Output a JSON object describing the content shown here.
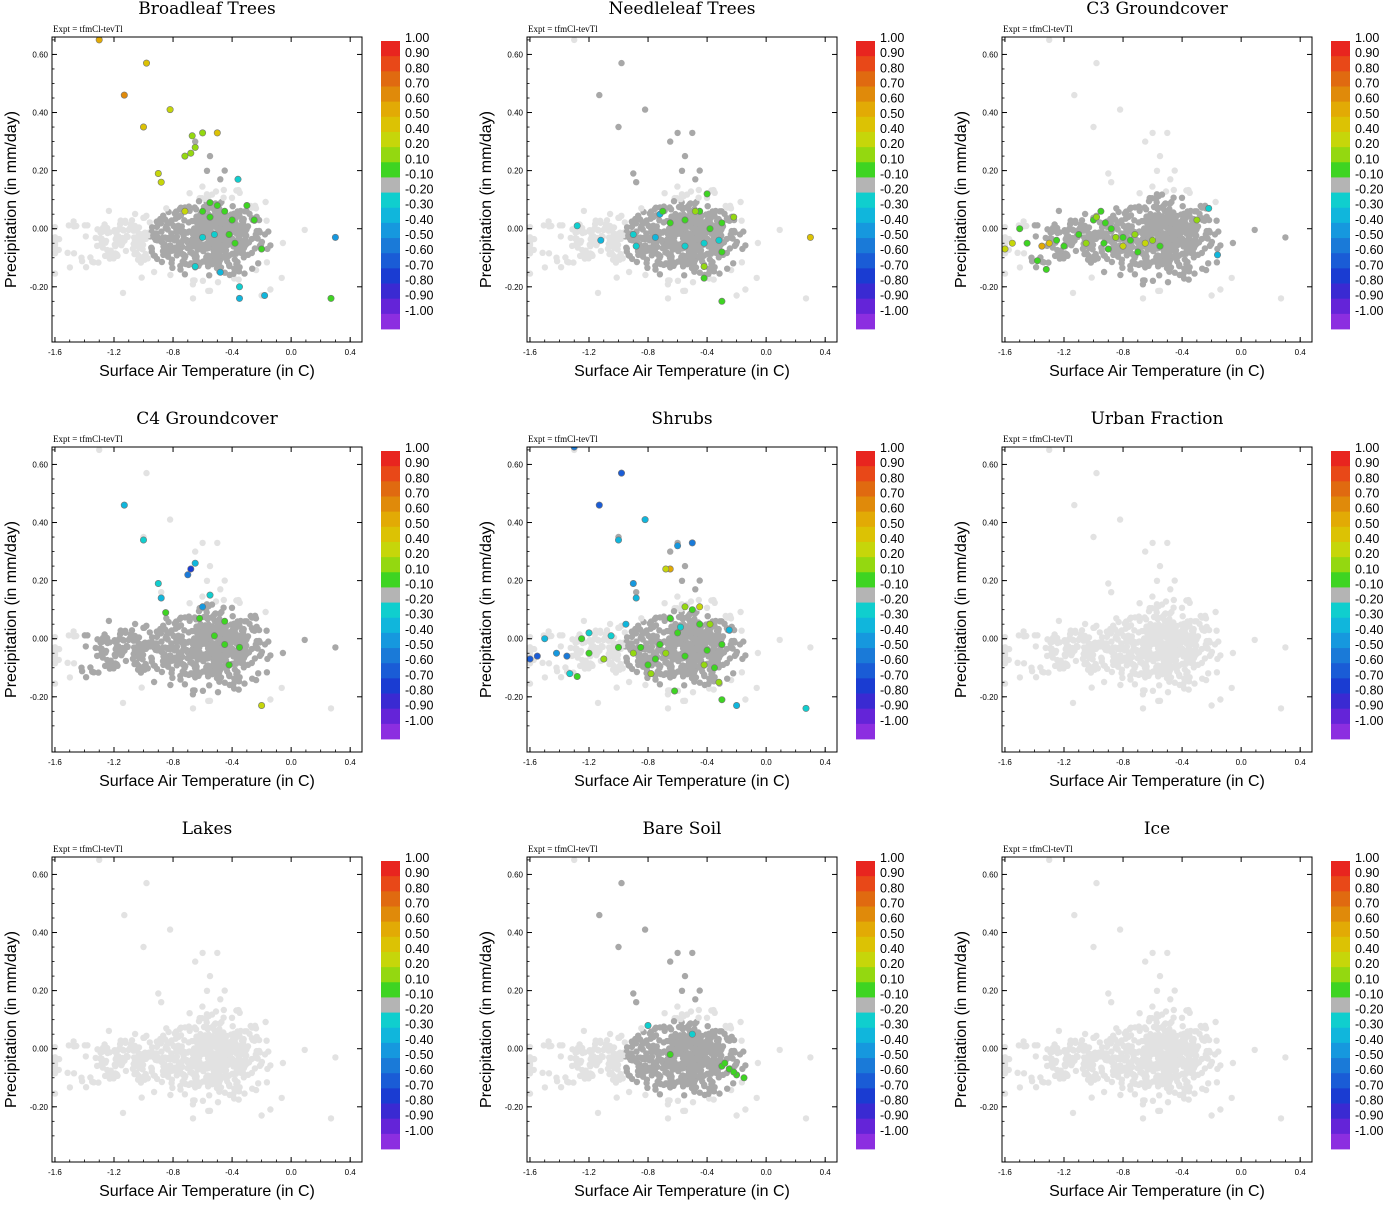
{
  "colorbar": {
    "labels": [
      "1.00",
      "0.90",
      "0.80",
      "0.70",
      "0.60",
      "0.50",
      "0.40",
      "0.20",
      "0.10",
      "-0.10",
      "-0.20",
      "-0.30",
      "-0.40",
      "-0.50",
      "-0.60",
      "-0.70",
      "-0.80",
      "-0.90",
      "-1.00"
    ],
    "colors": [
      "#e8251f",
      "#e84818",
      "#e06a10",
      "#e08a0a",
      "#e2aa05",
      "#dcc204",
      "#c6d60a",
      "#94d810",
      "#3ed422",
      "#b4b4b4",
      "#10cece",
      "#10b6dc",
      "#1698de",
      "#1a7ad8",
      "#1a5cd6",
      "#1a3cd2",
      "#3a2ad2",
      "#6424d8",
      "#8c2ee0"
    ]
  },
  "colors": {
    "light_gray": "#e2e2e2",
    "mid_gray": "#a8a8a8"
  },
  "chart_data": [
    {
      "type": "scatter",
      "title": "Broadleaf Trees",
      "annotation": "Expt = tfmCl-tevTl",
      "xlabel": "Surface Air Temperature (in C)",
      "ylabel": "Precipitation (in mm/day)",
      "xlim": [
        -1.62,
        0.48
      ],
      "ylim": [
        -0.39,
        0.66
      ],
      "xticks": [
        "-1.6",
        "-1.2",
        "-0.8",
        "-0.4",
        "0.0",
        "0.4"
      ],
      "yticks": [
        "0.60",
        "0.40",
        "0.20",
        "0.00",
        "-0.20"
      ],
      "colorbar_range": [
        -1.0,
        1.0
      ],
      "grid": false,
      "legend": "colorbar right",
      "colored_points": [
        [
          -1.3,
          0.65,
          0.6
        ],
        [
          -0.98,
          0.57,
          0.5
        ],
        [
          -1.13,
          0.46,
          0.7
        ],
        [
          -0.82,
          0.41,
          0.4
        ],
        [
          -1.0,
          0.35,
          0.5
        ],
        [
          -0.6,
          0.33,
          0.3
        ],
        [
          -0.67,
          0.32,
          0.2
        ],
        [
          -0.5,
          0.33,
          0.5
        ],
        [
          -0.65,
          0.28,
          0.2
        ],
        [
          -0.68,
          0.26,
          0.3
        ],
        [
          -0.72,
          0.25,
          0.3
        ],
        [
          -0.9,
          0.19,
          0.4
        ],
        [
          -0.88,
          0.16,
          0.4
        ],
        [
          -0.72,
          0.06,
          0.4
        ],
        [
          -0.36,
          0.17,
          -0.2
        ],
        [
          -0.55,
          0.09,
          0.1
        ],
        [
          -0.6,
          0.06,
          0.1
        ],
        [
          -0.5,
          0.08,
          0.1
        ],
        [
          -0.45,
          0.06,
          0.1
        ],
        [
          -0.3,
          0.08,
          0.1
        ],
        [
          -0.4,
          0.03,
          0.1
        ],
        [
          -0.55,
          0.04,
          0.1
        ],
        [
          -0.38,
          -0.05,
          0.1
        ],
        [
          -0.42,
          -0.02,
          0.1
        ],
        [
          -0.2,
          -0.07,
          0.1
        ],
        [
          -0.25,
          0.03,
          0.1
        ],
        [
          -0.6,
          -0.03,
          -0.2
        ],
        [
          -0.52,
          -0.02,
          -0.2
        ],
        [
          -0.65,
          -0.13,
          -0.2
        ],
        [
          -0.48,
          -0.15,
          -0.3
        ],
        [
          -0.35,
          -0.24,
          -0.3
        ],
        [
          -0.35,
          -0.2,
          -0.2
        ],
        [
          -0.18,
          -0.23,
          -0.3
        ],
        [
          0.3,
          -0.03,
          -0.4
        ],
        [
          0.27,
          -0.24,
          0.1
        ]
      ]
    },
    {
      "type": "scatter",
      "title": "Needleleaf Trees",
      "annotation": "Expt = tfmCl-tevTl",
      "xlabel": "Surface Air Temperature (in C)",
      "ylabel": "Precipitation (in mm/day)",
      "xlim": [
        -1.62,
        0.48
      ],
      "ylim": [
        -0.39,
        0.66
      ],
      "xticks": [
        "-1.6",
        "-1.2",
        "-0.8",
        "-0.4",
        "0.0",
        "0.4"
      ],
      "yticks": [
        "0.60",
        "0.40",
        "0.20",
        "0.00",
        "-0.20"
      ],
      "colorbar_range": [
        -1.0,
        1.0
      ],
      "grid": false,
      "legend": "colorbar right",
      "colored_points": [
        [
          -1.28,
          0.01,
          -0.2
        ],
        [
          -1.12,
          -0.04,
          -0.3
        ],
        [
          -0.9,
          -0.02,
          -0.2
        ],
        [
          -0.72,
          0.05,
          -0.3
        ],
        [
          -0.65,
          0.02,
          0.1
        ],
        [
          -0.55,
          0.03,
          0.1
        ],
        [
          -0.45,
          0.06,
          0.1
        ],
        [
          -0.4,
          0.12,
          0.1
        ],
        [
          -0.38,
          0.0,
          0.1
        ],
        [
          -0.3,
          0.02,
          0.1
        ],
        [
          -0.22,
          0.04,
          0.3
        ],
        [
          -0.3,
          -0.08,
          0.1
        ],
        [
          -0.42,
          -0.13,
          0.3
        ],
        [
          -0.42,
          -0.17,
          0.1
        ],
        [
          -0.3,
          -0.25,
          0.1
        ],
        [
          -0.48,
          0.06,
          0.2
        ],
        [
          -0.7,
          0.06,
          0.1
        ],
        [
          0.3,
          -0.03,
          0.5
        ],
        [
          -0.32,
          -0.04,
          -0.2
        ],
        [
          -0.42,
          -0.05,
          -0.2
        ],
        [
          -0.55,
          -0.06,
          -0.2
        ],
        [
          -0.75,
          -0.03,
          -0.3
        ],
        [
          -0.88,
          -0.06,
          -0.2
        ]
      ]
    },
    {
      "type": "scatter",
      "title": "C3 Groundcover",
      "annotation": "Expt = tfmCl-tevTl",
      "xlabel": "Surface Air Temperature (in C)",
      "ylabel": "Precipitation (in mm/day)",
      "xlim": [
        -1.62,
        0.48
      ],
      "ylim": [
        -0.39,
        0.66
      ],
      "xticks": [
        "-1.6",
        "-1.2",
        "-0.8",
        "-0.4",
        "0.0",
        "0.4"
      ],
      "yticks": [
        "0.60",
        "0.40",
        "0.20",
        "0.00",
        "-0.20"
      ],
      "colorbar_range": [
        -1.0,
        1.0
      ],
      "grid": false,
      "legend": "colorbar right",
      "colored_points": [
        [
          -1.6,
          -0.07,
          0.4
        ],
        [
          -1.55,
          -0.05,
          0.4
        ],
        [
          -1.5,
          0.0,
          0.1
        ],
        [
          -1.45,
          -0.05,
          0.1
        ],
        [
          -1.38,
          -0.11,
          0.1
        ],
        [
          -1.35,
          -0.06,
          0.6
        ],
        [
          -1.3,
          -0.05,
          0.5
        ],
        [
          -1.32,
          -0.14,
          0.1
        ],
        [
          -1.25,
          -0.04,
          0.1
        ],
        [
          -1.2,
          -0.06,
          0.1
        ],
        [
          -1.1,
          -0.02,
          0.1
        ],
        [
          -1.05,
          -0.05,
          0.3
        ],
        [
          -1.0,
          0.03,
          0.1
        ],
        [
          -0.95,
          0.06,
          0.1
        ],
        [
          -0.93,
          -0.05,
          0.1
        ],
        [
          -0.9,
          -0.07,
          0.1
        ],
        [
          -0.88,
          0.0,
          0.1
        ],
        [
          -0.85,
          -0.03,
          0.2
        ],
        [
          -0.8,
          -0.06,
          0.4
        ],
        [
          -0.75,
          -0.04,
          0.1
        ],
        [
          -0.7,
          -0.08,
          0.1
        ],
        [
          -0.65,
          -0.05,
          0.4
        ],
        [
          -0.6,
          -0.04,
          0.3
        ],
        [
          -0.55,
          -0.06,
          0.1
        ],
        [
          -0.72,
          -0.02,
          0.3
        ],
        [
          -0.3,
          0.03,
          0.3
        ],
        [
          -0.22,
          0.07,
          -0.2
        ],
        [
          -0.98,
          0.04,
          0.2
        ],
        [
          -0.92,
          0.02,
          0.1
        ],
        [
          -0.8,
          -0.03,
          0.1
        ],
        [
          -0.16,
          -0.09,
          -0.3
        ]
      ]
    },
    {
      "type": "scatter",
      "title": "C4 Groundcover",
      "annotation": "Expt = tfmCl-tevTl",
      "xlabel": "Surface Air Temperature (in C)",
      "ylabel": "Precipitation (in mm/day)",
      "xlim": [
        -1.62,
        0.48
      ],
      "ylim": [
        -0.39,
        0.66
      ],
      "xticks": [
        "-1.6",
        "-1.2",
        "-0.8",
        "-0.4",
        "0.0",
        "0.4"
      ],
      "yticks": [
        "0.60",
        "0.40",
        "0.20",
        "0.00",
        "-0.20"
      ],
      "colorbar_range": [
        -1.0,
        1.0
      ],
      "grid": false,
      "legend": "colorbar right",
      "colored_points": [
        [
          -1.13,
          0.46,
          -0.3
        ],
        [
          -1.0,
          0.34,
          -0.2
        ],
        [
          -0.9,
          0.19,
          -0.2
        ],
        [
          -0.88,
          0.14,
          -0.3
        ],
        [
          -0.68,
          0.24,
          -0.7
        ],
        [
          -0.65,
          0.26,
          -0.3
        ],
        [
          -0.7,
          0.22,
          -0.5
        ],
        [
          -0.85,
          0.09,
          0.1
        ],
        [
          -0.6,
          0.11,
          -0.4
        ],
        [
          -0.55,
          0.15,
          -0.2
        ],
        [
          -0.45,
          0.06,
          0.1
        ],
        [
          -0.52,
          0.01,
          0.1
        ],
        [
          -0.45,
          -0.02,
          0.1
        ],
        [
          -0.35,
          -0.03,
          0.1
        ],
        [
          -0.62,
          0.07,
          0.1
        ],
        [
          -0.42,
          -0.09,
          0.1
        ],
        [
          -0.2,
          -0.23,
          0.4
        ]
      ]
    },
    {
      "type": "scatter",
      "title": "Shrubs",
      "annotation": "Expt = tfmCl-tevTl",
      "xlabel": "Surface Air Temperature (in C)",
      "ylabel": "Precipitation (in mm/day)",
      "xlim": [
        -1.62,
        0.48
      ],
      "ylim": [
        -0.39,
        0.66
      ],
      "xticks": [
        "-1.6",
        "-1.2",
        "-0.8",
        "-0.4",
        "0.0",
        "0.4"
      ],
      "yticks": [
        "0.60",
        "0.40",
        "0.20",
        "0.00",
        "-0.20"
      ],
      "colorbar_range": [
        -1.0,
        1.0
      ],
      "grid": false,
      "legend": "colorbar right",
      "colored_points": [
        [
          -1.3,
          0.66,
          -0.5
        ],
        [
          -0.98,
          0.57,
          -0.6
        ],
        [
          -1.13,
          0.46,
          -0.6
        ],
        [
          -0.82,
          0.41,
          -0.3
        ],
        [
          -1.0,
          0.34,
          -0.3
        ],
        [
          -0.6,
          0.32,
          -0.4
        ],
        [
          -0.5,
          0.33,
          -0.5
        ],
        [
          -0.65,
          0.24,
          0.6
        ],
        [
          -0.68,
          0.24,
          0.4
        ],
        [
          -0.9,
          0.19,
          -0.4
        ],
        [
          -0.88,
          0.14,
          -0.3
        ],
        [
          -1.6,
          -0.07,
          -0.6
        ],
        [
          -1.55,
          -0.06,
          -0.6
        ],
        [
          -1.5,
          0.0,
          -0.3
        ],
        [
          -1.42,
          -0.05,
          -0.4
        ],
        [
          -1.35,
          -0.06,
          -0.5
        ],
        [
          -1.33,
          -0.12,
          -0.2
        ],
        [
          -1.28,
          -0.13,
          0.1
        ],
        [
          -1.25,
          0.0,
          0.1
        ],
        [
          -1.2,
          -0.05,
          0.1
        ],
        [
          -1.1,
          -0.07,
          0.2
        ],
        [
          -1.0,
          -0.03,
          0.1
        ],
        [
          -0.95,
          0.05,
          -0.3
        ],
        [
          -0.9,
          -0.05,
          0.3
        ],
        [
          -0.85,
          -0.03,
          0.1
        ],
        [
          -0.8,
          -0.09,
          0.1
        ],
        [
          -0.75,
          -0.07,
          0.1
        ],
        [
          -0.72,
          -0.02,
          0.1
        ],
        [
          -0.68,
          -0.05,
          0.3
        ],
        [
          -0.65,
          0.07,
          0.1
        ],
        [
          -0.6,
          0.02,
          0.1
        ],
        [
          -0.55,
          -0.06,
          0.1
        ],
        [
          -0.5,
          0.1,
          0.1
        ],
        [
          -0.45,
          0.05,
          0.1
        ],
        [
          -0.42,
          -0.09,
          0.3
        ],
        [
          -0.4,
          -0.04,
          0.1
        ],
        [
          -0.38,
          0.05,
          0.3
        ],
        [
          -0.35,
          -0.1,
          0.1
        ],
        [
          -0.32,
          -0.15,
          0.2
        ],
        [
          -0.3,
          -0.21,
          0.1
        ],
        [
          -0.3,
          -0.02,
          0.1
        ],
        [
          -0.25,
          0.03,
          -0.3
        ],
        [
          -0.2,
          -0.23,
          -0.3
        ],
        [
          -0.45,
          0.11,
          0.4
        ],
        [
          -0.55,
          0.11,
          0.3
        ],
        [
          -0.78,
          -0.12,
          0.3
        ],
        [
          -0.62,
          -0.18,
          0.1
        ],
        [
          -0.58,
          0.04,
          -0.2
        ],
        [
          0.27,
          -0.24,
          -0.2
        ],
        [
          -1.2,
          0.02,
          -0.2
        ],
        [
          -1.05,
          0.01,
          -0.2
        ]
      ]
    },
    {
      "type": "scatter",
      "title": "Urban Fraction",
      "annotation": "Expt = tfmCl-tevTl",
      "xlabel": "Surface Air Temperature (in C)",
      "ylabel": "Precipitation (in mm/day)",
      "xlim": [
        -1.62,
        0.48
      ],
      "ylim": [
        -0.39,
        0.66
      ],
      "xticks": [
        "-1.6",
        "-1.2",
        "-0.8",
        "-0.4",
        "0.0",
        "0.4"
      ],
      "yticks": [
        "0.60",
        "0.40",
        "0.20",
        "0.00",
        "-0.20"
      ],
      "colorbar_range": [
        -1.0,
        1.0
      ],
      "grid": false,
      "legend": "colorbar right",
      "colored_points": []
    },
    {
      "type": "scatter",
      "title": "Lakes",
      "annotation": "Expt = tfmCl-tevTl",
      "xlabel": "Surface Air Temperature (in C)",
      "ylabel": "Precipitation (in mm/day)",
      "xlim": [
        -1.62,
        0.48
      ],
      "ylim": [
        -0.39,
        0.66
      ],
      "xticks": [
        "-1.6",
        "-1.2",
        "-0.8",
        "-0.4",
        "0.0",
        "0.4"
      ],
      "yticks": [
        "0.60",
        "0.40",
        "0.20",
        "0.00",
        "-0.20"
      ],
      "colorbar_range": [
        -1.0,
        1.0
      ],
      "grid": false,
      "legend": "colorbar right",
      "colored_points": []
    },
    {
      "type": "scatter",
      "title": "Bare Soil",
      "annotation": "Expt = tfmCl-tevTl",
      "xlabel": "Surface Air Temperature (in C)",
      "ylabel": "Precipitation (in mm/day)",
      "xlim": [
        -1.62,
        0.48
      ],
      "ylim": [
        -0.39,
        0.66
      ],
      "xticks": [
        "-1.6",
        "-1.2",
        "-0.8",
        "-0.4",
        "0.0",
        "0.4"
      ],
      "yticks": [
        "0.60",
        "0.40",
        "0.20",
        "0.00",
        "-0.20"
      ],
      "colorbar_range": [
        -1.0,
        1.0
      ],
      "grid": false,
      "legend": "colorbar right",
      "colored_points": [
        [
          -0.8,
          0.08,
          -0.2
        ],
        [
          -0.65,
          -0.02,
          0.1
        ],
        [
          -0.5,
          0.05,
          -0.2
        ],
        [
          -0.3,
          -0.06,
          0.1
        ],
        [
          -0.25,
          -0.07,
          0.1
        ],
        [
          -0.2,
          -0.09,
          0.1
        ],
        [
          -0.15,
          -0.1,
          0.1
        ],
        [
          -0.22,
          -0.08,
          0.1
        ],
        [
          -0.28,
          -0.05,
          0.1
        ]
      ]
    },
    {
      "type": "scatter",
      "title": "Ice",
      "annotation": "Expt = tfmCl-tevTl",
      "xlabel": "Surface Air Temperature (in C)",
      "ylabel": "Precipitation (in mm/day)",
      "xlim": [
        -1.62,
        0.48
      ],
      "ylim": [
        -0.39,
        0.66
      ],
      "xticks": [
        "-1.6",
        "-1.2",
        "-0.8",
        "-0.4",
        "0.0",
        "0.4"
      ],
      "yticks": [
        "0.60",
        "0.40",
        "0.20",
        "0.00",
        "-0.20"
      ],
      "colorbar_range": [
        -1.0,
        1.0
      ],
      "grid": false,
      "legend": "colorbar right",
      "colored_points": []
    }
  ]
}
